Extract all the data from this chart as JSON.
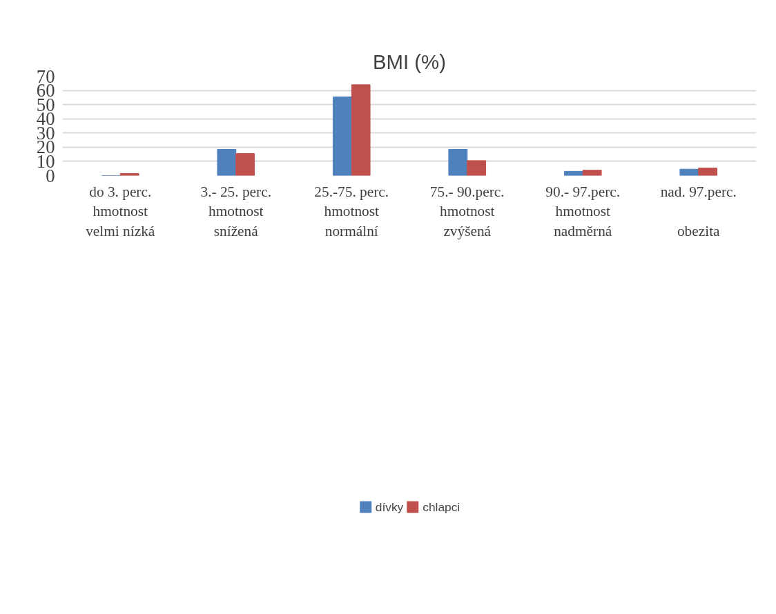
{
  "chart_data": {
    "type": "bar",
    "title": "BMI (%)",
    "categories": [
      "do 3. perc.\nhmotnost\nvelmi nízká",
      "3.- 25. perc.\nhmotnost\nsnížená",
      "25.-75. perc.\nhmotnost\nnormální",
      "75.- 90.perc.\nhmotnost\nzvýšená",
      "90.- 97.perc.\nhmotnost\nnadměrná",
      "nad. 97.perc.\n\nobezita"
    ],
    "series": [
      {
        "name": "dívky",
        "color": "#4f81bd",
        "values": [
          0,
          18.5,
          55.5,
          18.5,
          3,
          4.5
        ]
      },
      {
        "name": "chlapci",
        "color": "#c0504d",
        "values": [
          1.5,
          15.5,
          64,
          10.5,
          3.8,
          5.3
        ]
      }
    ],
    "ylim": [
      0,
      70
    ],
    "yticks": [
      0,
      10,
      20,
      30,
      40,
      50,
      60,
      70
    ],
    "grid": "y",
    "legend": "bottom"
  }
}
